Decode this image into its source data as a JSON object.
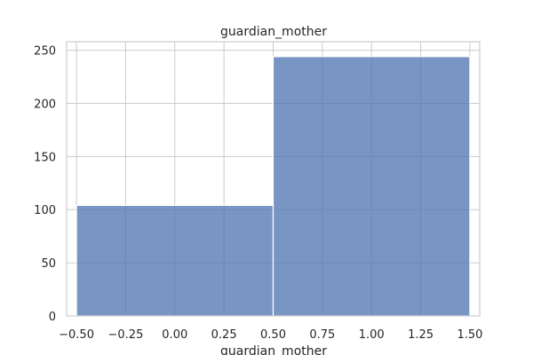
{
  "chart_data": {
    "type": "bar",
    "title": "guardian_mother",
    "xlabel": "guardian_mother",
    "ylabel": "",
    "bins": [
      {
        "x0": -0.5,
        "x1": 0.5,
        "value": 104
      },
      {
        "x0": 0.5,
        "x1": 1.5,
        "value": 244
      }
    ],
    "xlim": [
      -0.55,
      1.55
    ],
    "ylim": [
      0,
      258
    ],
    "xticks": [
      "−0.50",
      "−0.25",
      "0.00",
      "0.25",
      "0.50",
      "0.75",
      "1.00",
      "1.25",
      "1.50"
    ],
    "xtick_values": [
      -0.5,
      -0.25,
      0,
      0.25,
      0.5,
      0.75,
      1.0,
      1.25,
      1.5
    ],
    "yticks": [
      "0",
      "50",
      "100",
      "150",
      "200",
      "250"
    ],
    "ytick_values": [
      0,
      50,
      100,
      150,
      200,
      250
    ],
    "grid": true,
    "bar_color": "#4c72b0"
  }
}
